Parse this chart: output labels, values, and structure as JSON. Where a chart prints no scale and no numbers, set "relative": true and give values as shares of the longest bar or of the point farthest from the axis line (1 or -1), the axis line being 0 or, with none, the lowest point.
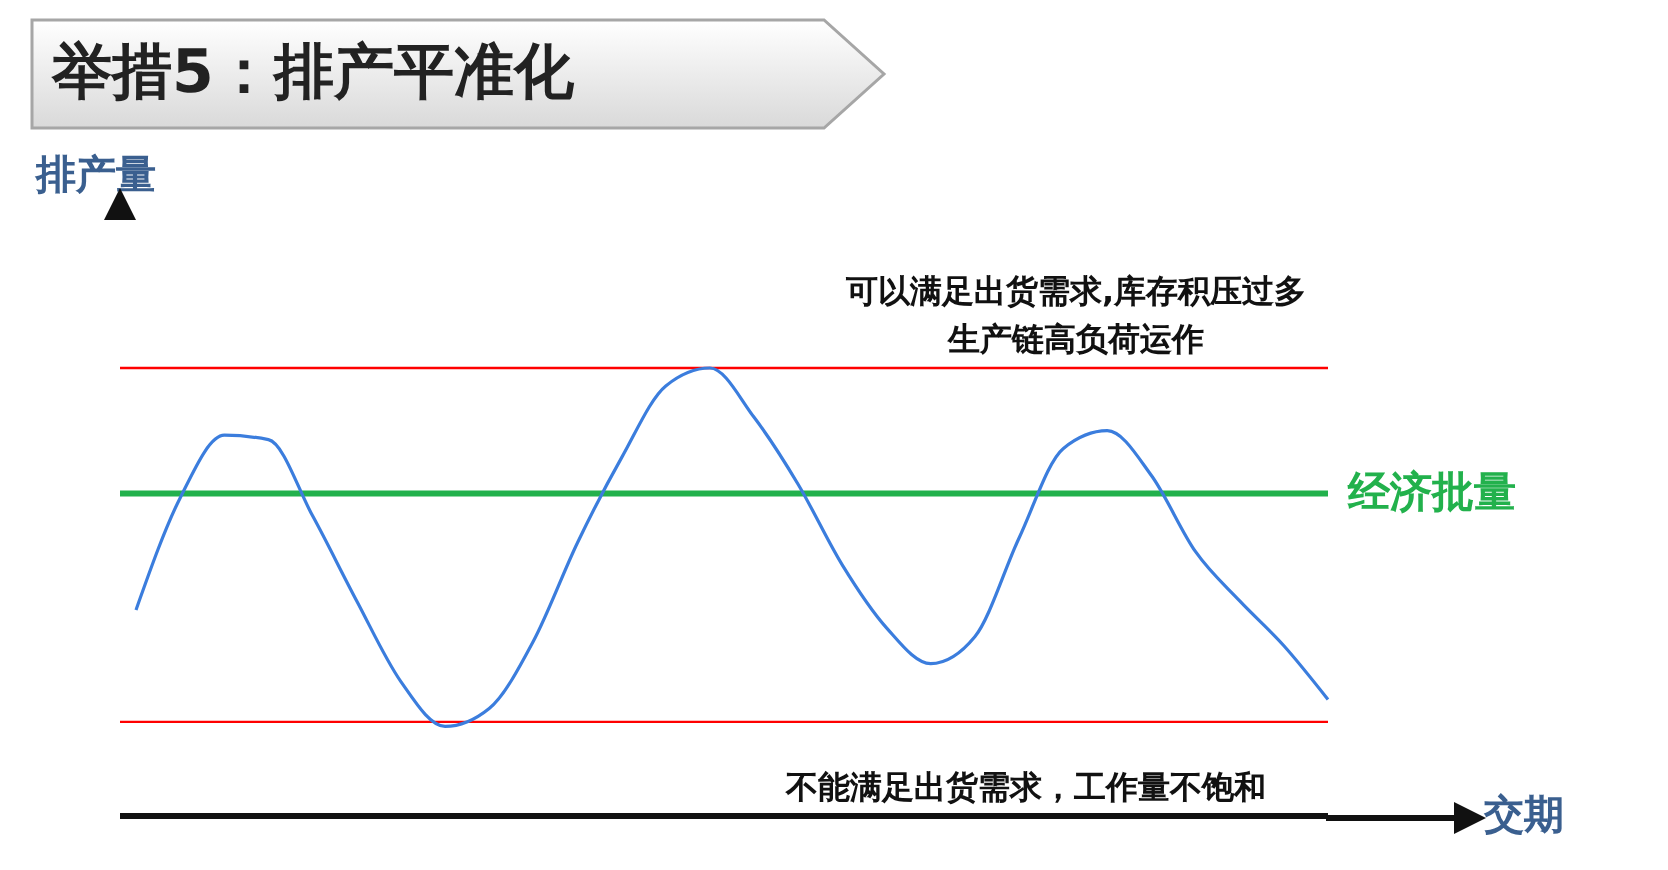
{
  "chart_data": {
    "type": "line",
    "title": "举措5：排产平准化",
    "xlabel": "交期",
    "ylabel": "排产量",
    "relative": true,
    "marker": "none",
    "legend": false,
    "grid": false,
    "categories": [
      null,
      null,
      null,
      null,
      null,
      null,
      null,
      null,
      null,
      null,
      null,
      null,
      null,
      null,
      null,
      null,
      null,
      null,
      null,
      null,
      null,
      null,
      null,
      null,
      null,
      null,
      null,
      null
    ],
    "series": [
      {
        "color": "#3b7ddd",
        "values": [
          0.46,
          0.71,
          0.85,
          0.84,
          0.67,
          0.48,
          0.3,
          0.2,
          0.24,
          0.39,
          0.61,
          0.8,
          0.96,
          1.0,
          0.89,
          0.74,
          0.56,
          0.42,
          0.34,
          0.4,
          0.62,
          0.82,
          0.86,
          0.76,
          0.59,
          0.48,
          0.38,
          0.26
        ]
      }
    ],
    "ref_lines": [
      {
        "axis": "y",
        "value": 1.0,
        "color": "#ff0000"
      },
      {
        "axis": "y",
        "value": 0.72,
        "color": "#22b14c",
        "label": "经济批量"
      },
      {
        "axis": "y",
        "value": 0.21,
        "color": "#ff0000"
      }
    ],
    "annotations": [
      "可以满足出货需求,库存积压过多",
      "生产链高负荷运作",
      "不能满足出货需求，工作量不饱和"
    ]
  }
}
